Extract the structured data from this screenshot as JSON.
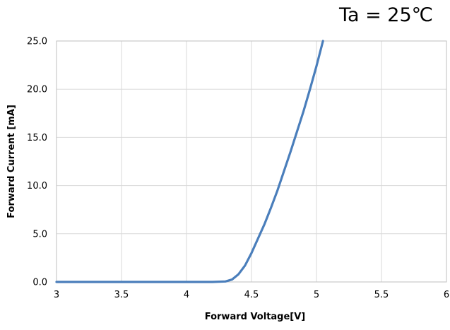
{
  "chart_data": {
    "type": "line",
    "title": "",
    "annotation": "Ta = 25℃",
    "xlabel": "Forward Voltage[V]",
    "ylabel": "Forward Current [mA]",
    "xlim": [
      3,
      6
    ],
    "ylim": [
      0,
      25
    ],
    "xticks": [
      3,
      3.5,
      4,
      4.5,
      5,
      5.5,
      6
    ],
    "xtick_labels": [
      "3",
      "3.5",
      "4",
      "4.5",
      "5",
      "5.5",
      "6"
    ],
    "yticks": [
      0,
      5,
      10,
      15,
      20,
      25
    ],
    "ytick_labels": [
      "0.0",
      "5.0",
      "10.0",
      "15.0",
      "20.0",
      "25.0"
    ],
    "grid": true,
    "legend": "none",
    "series": [
      {
        "color": "#4a7ebb",
        "points": [
          [
            3.0,
            0.0
          ],
          [
            3.5,
            0.0
          ],
          [
            4.0,
            0.0
          ],
          [
            4.2,
            0.0
          ],
          [
            4.3,
            0.05
          ],
          [
            4.35,
            0.25
          ],
          [
            4.4,
            0.8
          ],
          [
            4.45,
            1.7
          ],
          [
            4.5,
            3.0
          ],
          [
            4.55,
            4.5
          ],
          [
            4.6,
            6.0
          ],
          [
            4.65,
            7.7
          ],
          [
            4.7,
            9.5
          ],
          [
            4.75,
            11.5
          ],
          [
            4.8,
            13.5
          ],
          [
            4.85,
            15.6
          ],
          [
            4.9,
            17.7
          ],
          [
            4.95,
            20.0
          ],
          [
            5.0,
            22.4
          ],
          [
            5.05,
            25.0
          ]
        ]
      }
    ]
  }
}
